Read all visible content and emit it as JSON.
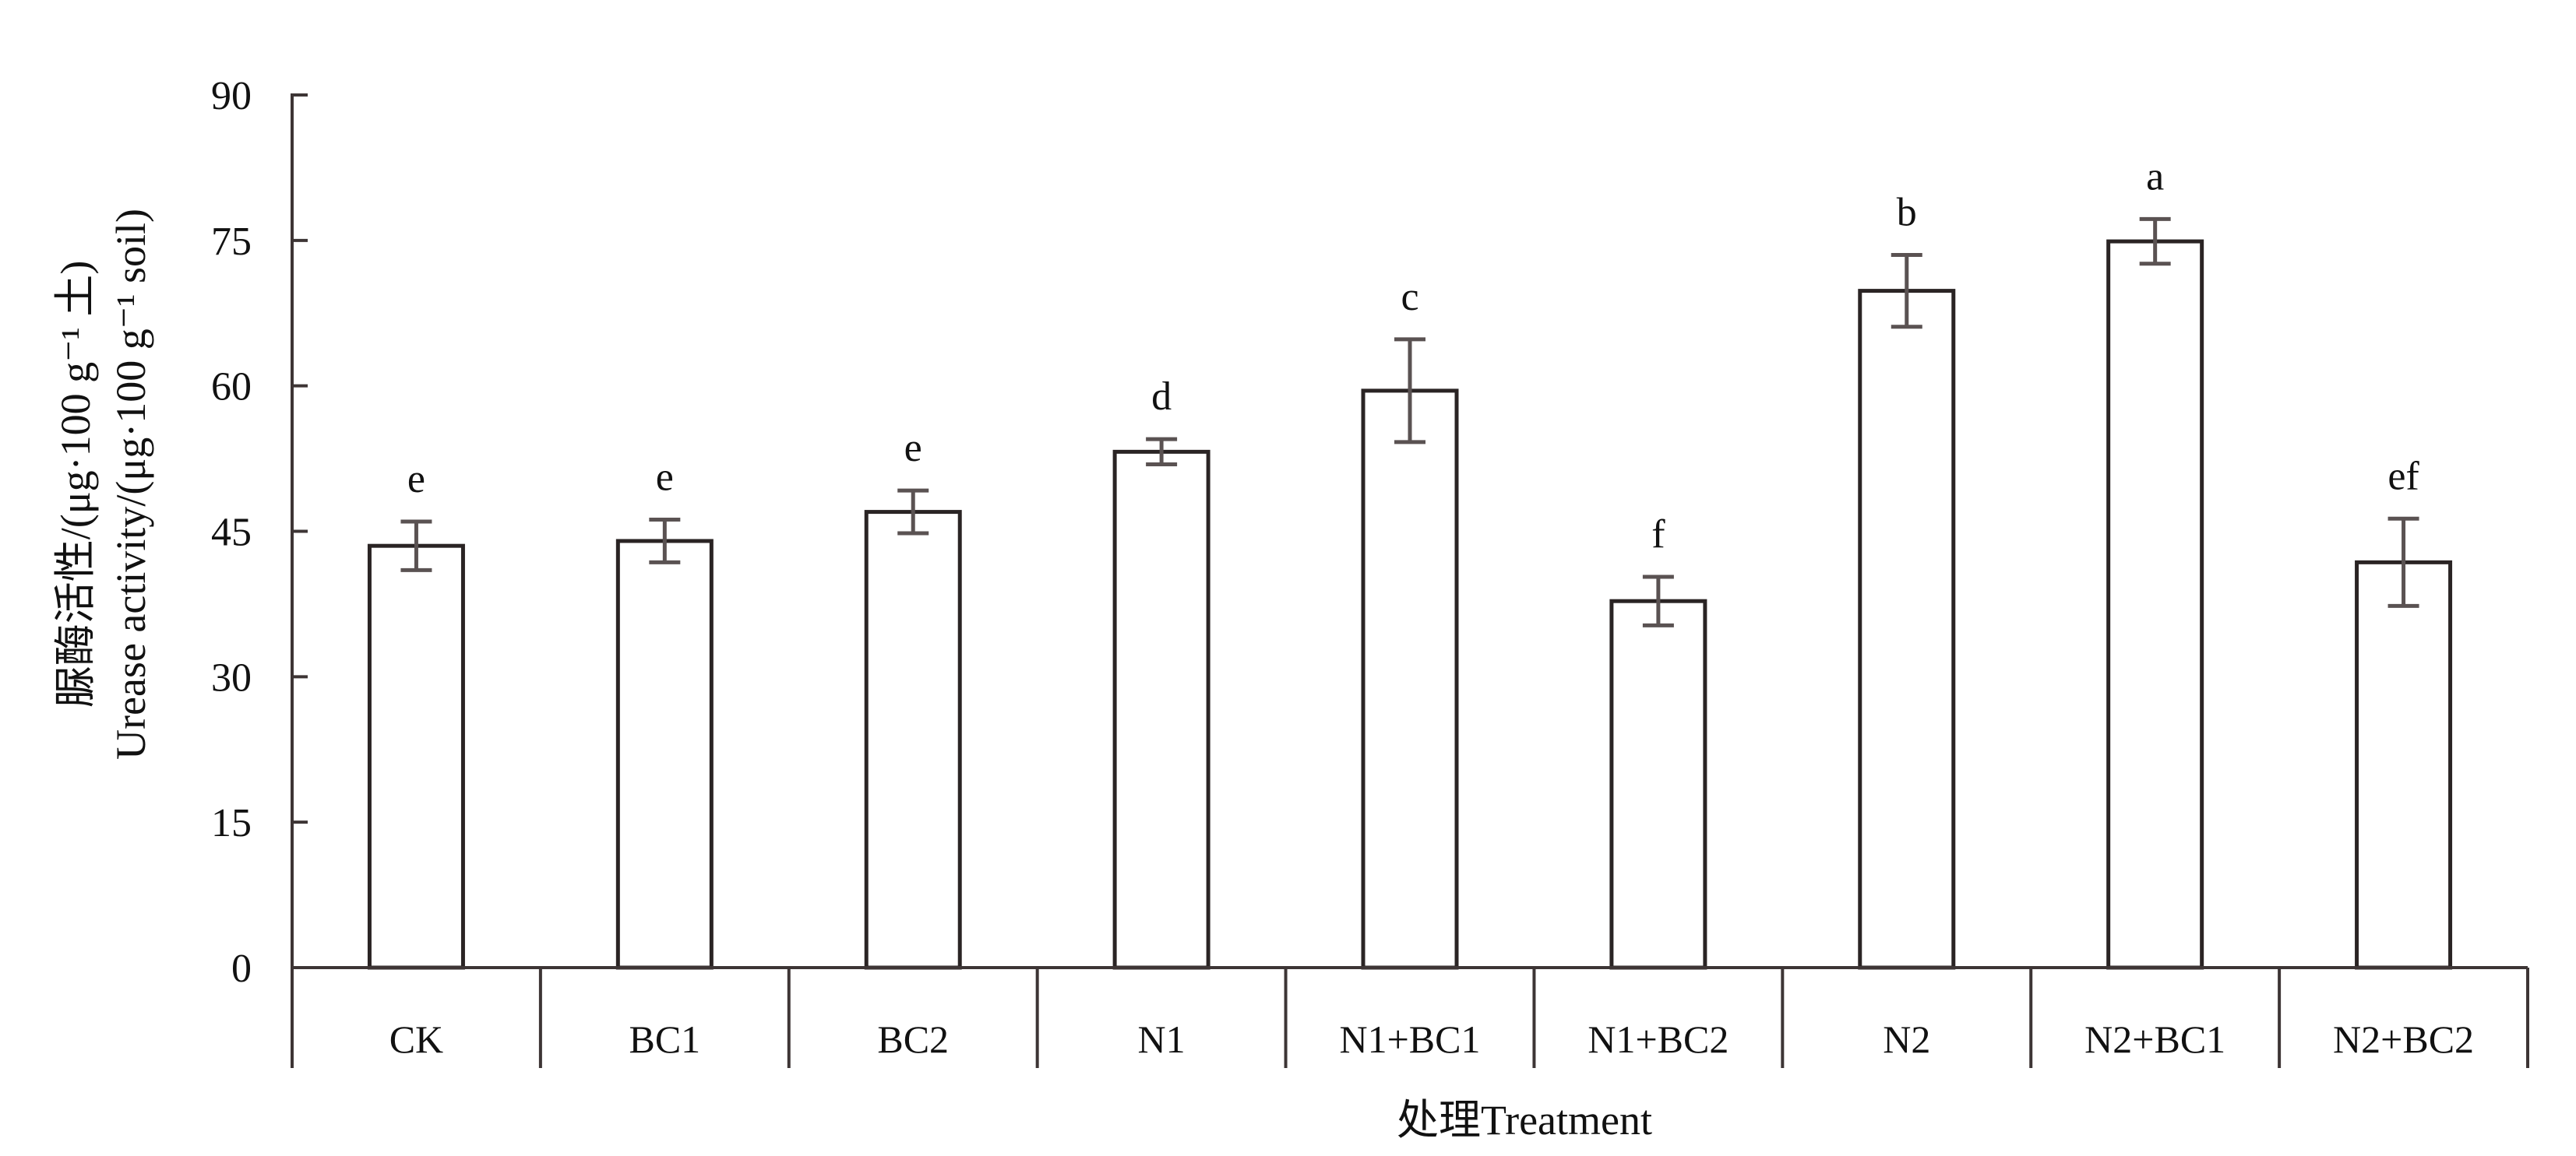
{
  "chart_data": {
    "type": "bar",
    "title": "",
    "xlabel": "处理Treatment",
    "ylabel_lines": [
      "脲酶活性/(μg·100 g⁻¹ 土)",
      "Urease activity/(μg·100 g⁻¹ soil)"
    ],
    "ylim": [
      0,
      90
    ],
    "yticks": [
      0,
      15,
      30,
      45,
      60,
      75,
      90
    ],
    "categories": [
      "CK",
      "BC1",
      "BC2",
      "N1",
      "N1+BC1",
      "N1+BC2",
      "N2",
      "N2+BC1",
      "N2+BC2"
    ],
    "values": [
      43.5,
      44.0,
      47.0,
      53.2,
      59.5,
      37.8,
      69.8,
      74.9,
      41.8
    ],
    "errors": [
      2.5,
      2.2,
      2.2,
      1.3,
      5.3,
      2.5,
      3.7,
      2.3,
      4.5
    ],
    "significance": [
      "e",
      "e",
      "e",
      "d",
      "c",
      "f",
      "b",
      "a",
      "ef"
    ],
    "grid": false,
    "legend": "none",
    "colors": {
      "bar_fill": "#ffffff",
      "bar_edge": "#2a2424",
      "error_bar": "#5a5252",
      "axis": "#3d3535"
    }
  }
}
